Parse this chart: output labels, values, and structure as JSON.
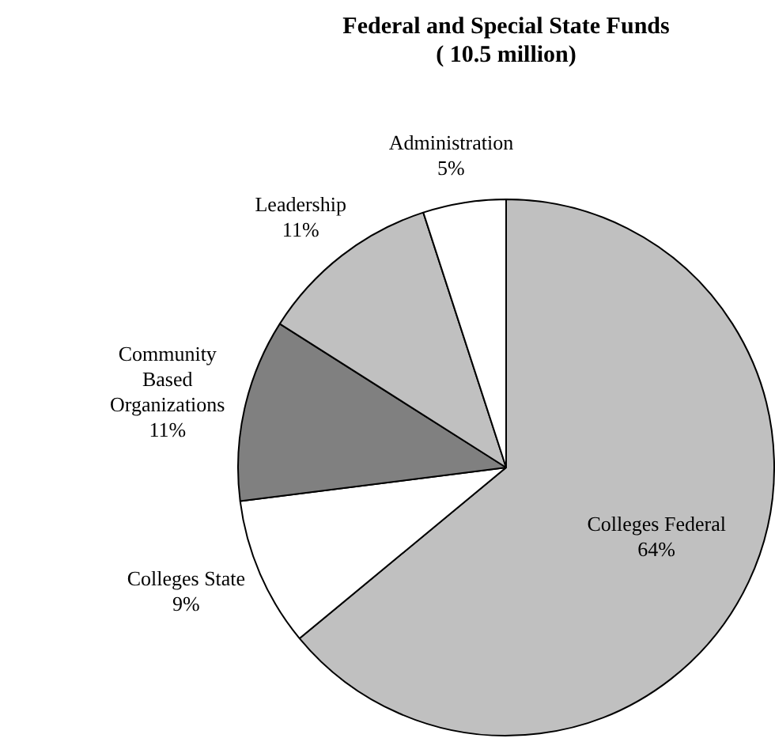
{
  "chart_data": {
    "type": "pie",
    "title": "Federal and Special State Funds",
    "subtitle": "( 10.5 million)",
    "categories": [
      "Colleges Federal",
      "Colleges State",
      "Community Based Organizations",
      "Leadership",
      "Administration"
    ],
    "values": [
      64,
      9,
      11,
      11,
      5
    ],
    "colors": [
      "#c0c0c0",
      "#ffffff",
      "#808080",
      "#c0c0c0",
      "#ffffff"
    ],
    "value_labels": [
      "64%",
      "9%",
      "11%",
      "11%",
      "5%"
    ]
  }
}
